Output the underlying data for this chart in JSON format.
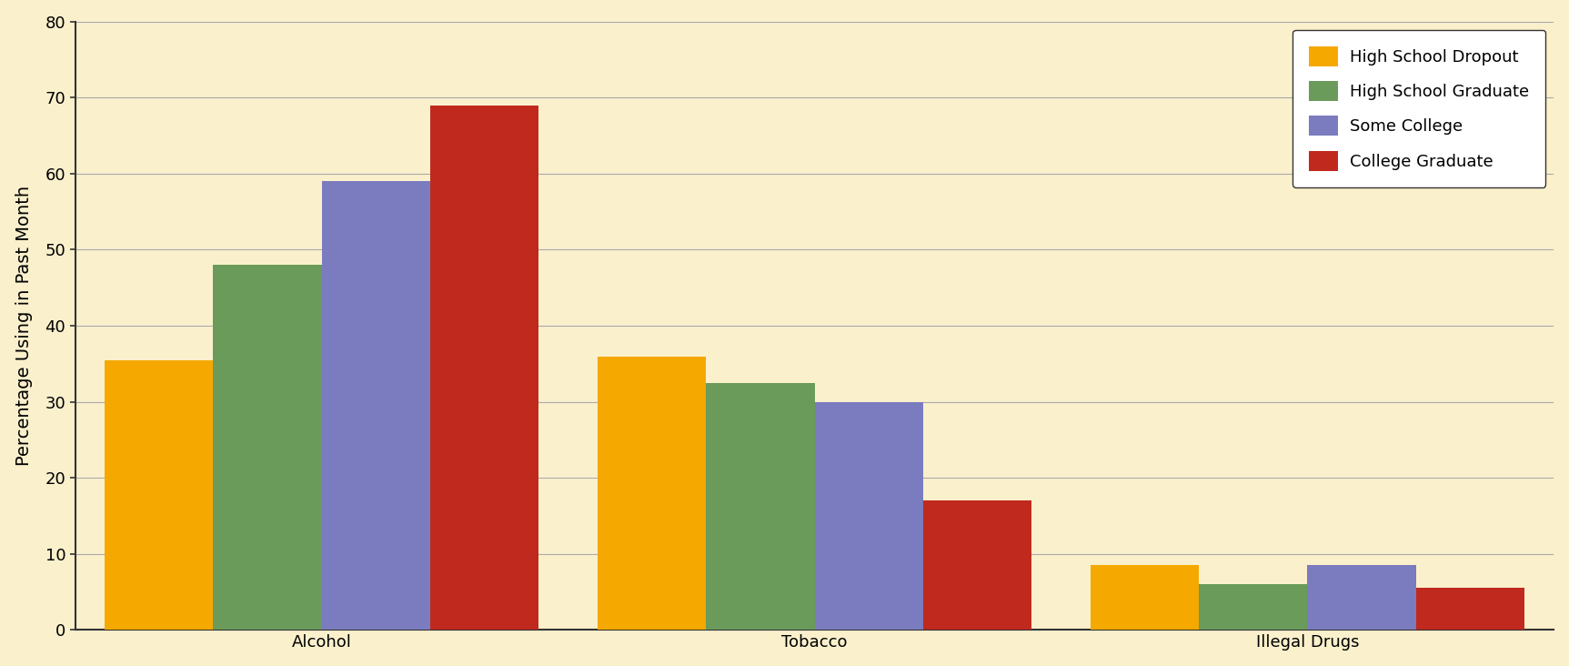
{
  "categories": [
    "Alcohol",
    "Tobacco",
    "Illegal Drugs"
  ],
  "series": [
    {
      "label": "High School Dropout",
      "color": "#F5A800",
      "values": [
        35.5,
        36.0,
        8.5
      ]
    },
    {
      "label": "High School Graduate",
      "color": "#6A9B5A",
      "values": [
        48.0,
        32.5,
        6.0
      ]
    },
    {
      "label": "Some College",
      "color": "#7B7BBF",
      "values": [
        59.0,
        30.0,
        8.5
      ]
    },
    {
      "label": "College Graduate",
      "color": "#C0291D",
      "values": [
        69.0,
        17.0,
        5.5
      ]
    }
  ],
  "ylabel": "Percentage Using in Past Month",
  "ylim": [
    0,
    80
  ],
  "yticks": [
    0,
    10,
    20,
    30,
    40,
    50,
    60,
    70,
    80
  ],
  "background_color": "#FAF0CC",
  "plot_background_color": "#FAF0CC",
  "legend_background": "#FFFFFF",
  "bar_width": 0.22,
  "axis_label_fontsize": 14,
  "tick_fontsize": 13,
  "legend_fontsize": 13
}
